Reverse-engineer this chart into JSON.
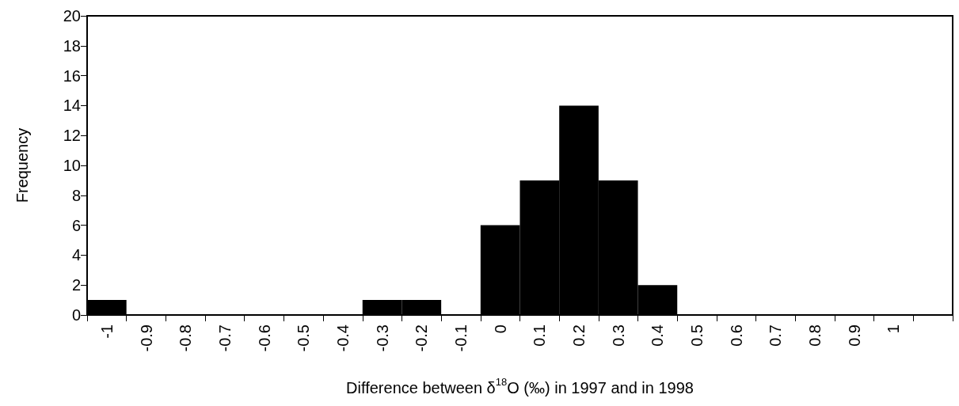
{
  "chart_data": {
    "type": "bar",
    "xlabel": "Difference between δ$^{18}$O (‰) in 1997 and in 1998",
    "ylabel": "Frequency",
    "categories": [
      "-1",
      "-0.9",
      "-0.8",
      "-0.7",
      "-0.6",
      "-0.5",
      "-0.4",
      "-0.3",
      "-0.2",
      "-0.1",
      "0",
      "0.1",
      "0.2",
      "0.3",
      "0.4",
      "0.5",
      "0.6",
      "0.7",
      "0.8",
      "0.9",
      "1",
      null
    ],
    "values": [
      1,
      0,
      0,
      0,
      0,
      0,
      0,
      1,
      1,
      0,
      6,
      9,
      14,
      9,
      2,
      0,
      0,
      0,
      0,
      0,
      0,
      0
    ],
    "color": "#000000",
    "ylim": [
      0,
      20
    ],
    "yticks": [
      0,
      2,
      4,
      6,
      8,
      10,
      12,
      14,
      16,
      18,
      20
    ],
    "grid": false
  }
}
